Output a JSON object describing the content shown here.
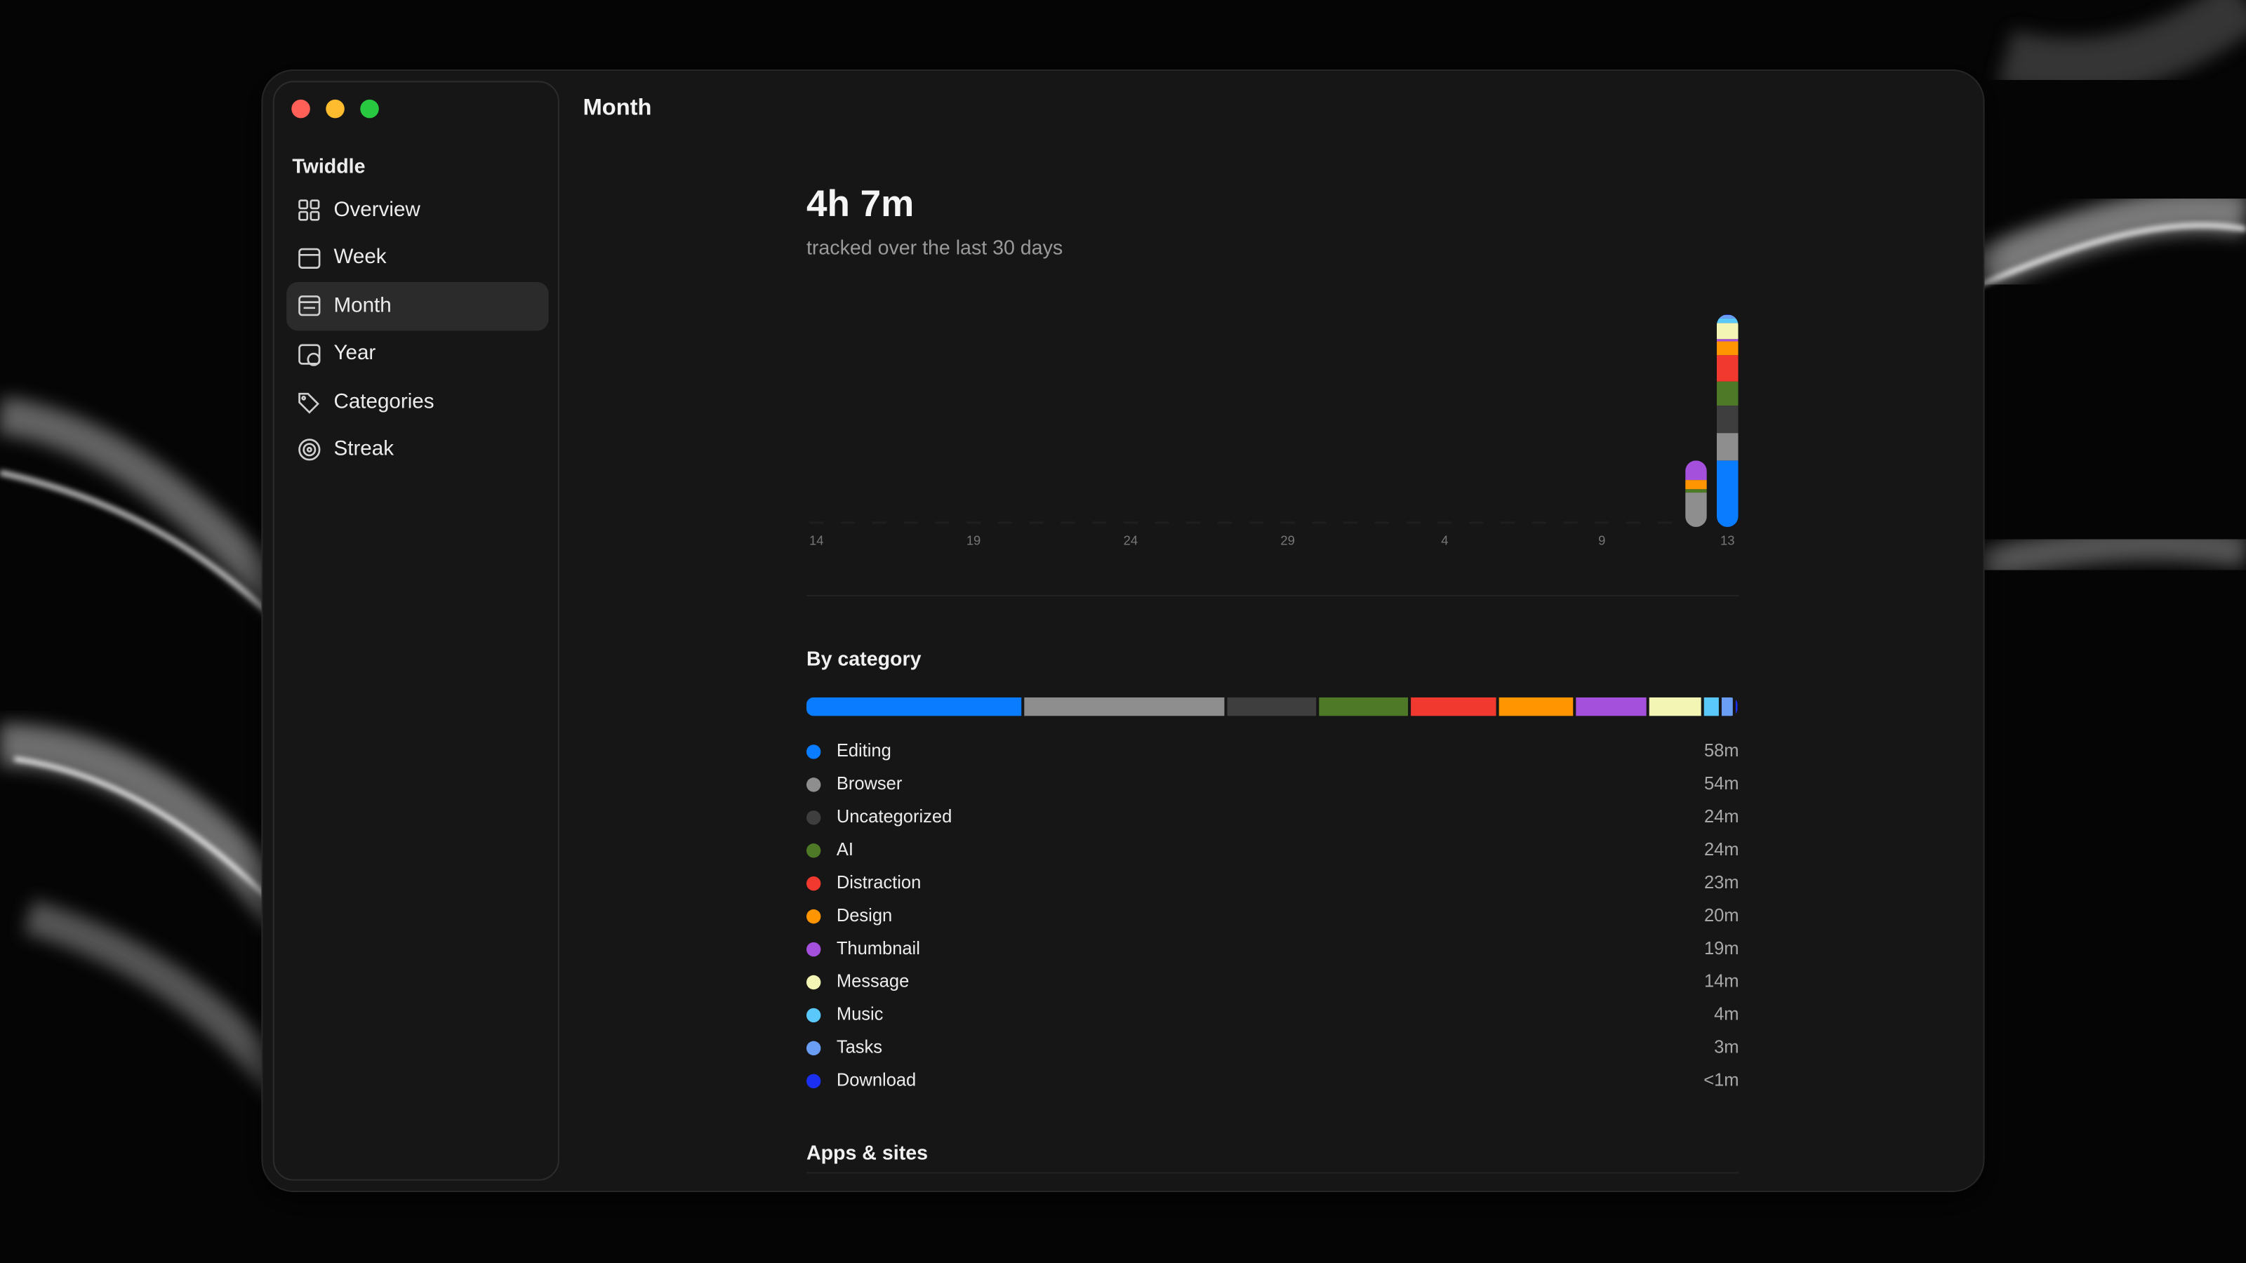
{
  "window": {
    "title": "Month"
  },
  "sidebar": {
    "app_name": "Twiddle",
    "items": [
      "Overview",
      "Week",
      "Month",
      "Year",
      "Categories",
      "Streak"
    ]
  },
  "summary": {
    "total": "4h 7m",
    "subtitle": "tracked over the last 30 days"
  },
  "apps_section": {
    "title": "Apps & sites"
  },
  "chart_data": [
    {
      "type": "bar",
      "stacked": true,
      "categories": [
        "14",
        null,
        null,
        null,
        null,
        "19",
        null,
        null,
        null,
        null,
        "24",
        null,
        null,
        null,
        null,
        "29",
        null,
        null,
        null,
        null,
        "4",
        null,
        null,
        null,
        null,
        "9",
        null,
        null,
        null,
        "13"
      ],
      "series": [
        {
          "color": "#0a7cff",
          "values": [
            0,
            0,
            0,
            0,
            0,
            0,
            0,
            0,
            0,
            0,
            0,
            0,
            0,
            0,
            0,
            0,
            0,
            0,
            0,
            0,
            0,
            0,
            0,
            0,
            0,
            0,
            0,
            0,
            0,
            58
          ]
        },
        {
          "color": "#8e8e8e",
          "values": [
            0,
            0,
            0,
            0,
            0,
            0,
            0,
            0,
            0,
            0,
            0,
            0,
            0,
            0,
            0,
            0,
            0,
            0,
            0,
            0,
            0,
            0,
            0,
            0,
            0,
            0,
            0,
            0,
            30,
            24
          ]
        },
        {
          "color": "#3e3e3e",
          "values": [
            0,
            0,
            0,
            0,
            0,
            0,
            0,
            0,
            0,
            0,
            0,
            0,
            0,
            0,
            0,
            0,
            0,
            0,
            0,
            0,
            0,
            0,
            0,
            0,
            0,
            0,
            0,
            0,
            0,
            24
          ]
        },
        {
          "color": "#4e7a27",
          "values": [
            0,
            0,
            0,
            0,
            0,
            0,
            0,
            0,
            0,
            0,
            0,
            0,
            0,
            0,
            0,
            0,
            0,
            0,
            0,
            0,
            0,
            0,
            0,
            0,
            0,
            0,
            0,
            0,
            3,
            21
          ]
        },
        {
          "color": "#f2392f",
          "values": [
            0,
            0,
            0,
            0,
            0,
            0,
            0,
            0,
            0,
            0,
            0,
            0,
            0,
            0,
            0,
            0,
            0,
            0,
            0,
            0,
            0,
            0,
            0,
            0,
            0,
            0,
            0,
            0,
            0,
            23
          ]
        },
        {
          "color": "#ff9500",
          "values": [
            0,
            0,
            0,
            0,
            0,
            0,
            0,
            0,
            0,
            0,
            0,
            0,
            0,
            0,
            0,
            0,
            0,
            0,
            0,
            0,
            0,
            0,
            0,
            0,
            0,
            0,
            0,
            0,
            8,
            12
          ]
        },
        {
          "color": "#a550dd",
          "values": [
            0,
            0,
            0,
            0,
            0,
            0,
            0,
            0,
            0,
            0,
            0,
            0,
            0,
            0,
            0,
            0,
            0,
            0,
            0,
            0,
            0,
            0,
            0,
            0,
            0,
            0,
            0,
            0,
            17,
            2
          ]
        },
        {
          "color": "#f3f5b5",
          "values": [
            0,
            0,
            0,
            0,
            0,
            0,
            0,
            0,
            0,
            0,
            0,
            0,
            0,
            0,
            0,
            0,
            0,
            0,
            0,
            0,
            0,
            0,
            0,
            0,
            0,
            0,
            0,
            0,
            0,
            14
          ]
        },
        {
          "color": "#5ac8fa",
          "values": [
            0,
            0,
            0,
            0,
            0,
            0,
            0,
            0,
            0,
            0,
            0,
            0,
            0,
            0,
            0,
            0,
            0,
            0,
            0,
            0,
            0,
            0,
            0,
            0,
            0,
            0,
            0,
            0,
            0,
            4
          ]
        },
        {
          "color": "#6a9ef5",
          "values": [
            0,
            0,
            0,
            0,
            0,
            0,
            0,
            0,
            0,
            0,
            0,
            0,
            0,
            0,
            0,
            0,
            0,
            0,
            0,
            0,
            0,
            0,
            0,
            0,
            0,
            0,
            0,
            0,
            0,
            3
          ]
        },
        {
          "color": "#1b2ff0",
          "values": [
            0,
            0,
            0,
            0,
            0,
            0,
            0,
            0,
            0,
            0,
            0,
            0,
            0,
            0,
            0,
            0,
            0,
            0,
            0,
            0,
            0,
            0,
            0,
            0,
            0,
            0,
            0,
            0,
            0,
            0.5
          ]
        }
      ]
    },
    {
      "type": "stacked-bar",
      "title": "By category",
      "categories": [
        "Editing",
        "Browser",
        "Uncategorized",
        "AI",
        "Distraction",
        "Design",
        "Thumbnail",
        "Message",
        "Music",
        "Tasks",
        "Download"
      ],
      "values": [
        58,
        54,
        24,
        24,
        23,
        20,
        19,
        14,
        4,
        3,
        0.5
      ],
      "value_labels": [
        "58m",
        "54m",
        "24m",
        "24m",
        "23m",
        "20m",
        "19m",
        "14m",
        "4m",
        "3m",
        "<1m"
      ],
      "colors": [
        "#0a7cff",
        "#8e8e8e",
        "#3e3e3e",
        "#4e7a27",
        "#f2392f",
        "#ff9500",
        "#a550dd",
        "#f3f5b5",
        "#5ac8fa",
        "#6a9ef5",
        "#1b2ff0"
      ]
    }
  ]
}
